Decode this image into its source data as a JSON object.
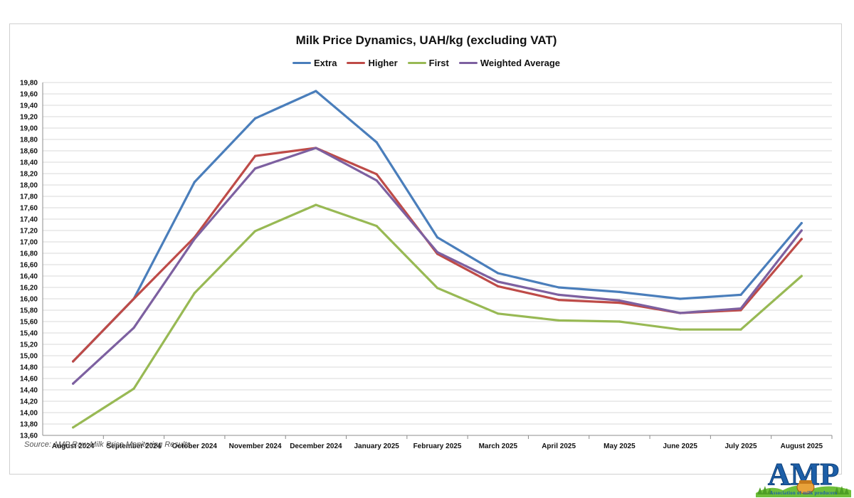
{
  "chart_data": {
    "type": "line",
    "title": "Milk Price Dynamics, UAH/kg (excluding VAT)",
    "xlabel": "",
    "ylabel": "",
    "categories": [
      "August 2024",
      "September 2024",
      "October 2024",
      "November 2024",
      "December 2024",
      "January 2025",
      "February 2025",
      "March 2025",
      "April 2025",
      "May 2025",
      "June 2025",
      "July 2025",
      "August 2025"
    ],
    "ylim": [
      13.6,
      19.8
    ],
    "yticks": [
      "13,60",
      "13,80",
      "14,00",
      "14,20",
      "14,40",
      "14,60",
      "14,80",
      "15,00",
      "15,20",
      "15,40",
      "15,60",
      "15,80",
      "16,00",
      "16,20",
      "16,40",
      "16,60",
      "16,80",
      "17,00",
      "17,20",
      "17,40",
      "17,60",
      "17,80",
      "18,00",
      "18,20",
      "18,40",
      "18,60",
      "18,80",
      "19,00",
      "19,20",
      "19,40",
      "19,60",
      "19,80"
    ],
    "grid": true,
    "legend_position": "top",
    "series": [
      {
        "name": "Extra",
        "color": "#4a7ebb",
        "values": [
          14.9,
          16.0,
          18.05,
          19.17,
          19.65,
          18.75,
          17.08,
          16.45,
          16.2,
          16.12,
          16.0,
          16.07,
          17.33
        ]
      },
      {
        "name": "Higher",
        "color": "#be4b48",
        "values": [
          14.9,
          16.0,
          17.08,
          18.51,
          18.65,
          18.19,
          16.79,
          16.22,
          15.98,
          15.93,
          15.75,
          15.8,
          17.05
        ]
      },
      {
        "name": "First",
        "color": "#98b954",
        "values": [
          13.74,
          14.42,
          16.1,
          17.19,
          17.65,
          17.28,
          16.19,
          15.74,
          15.62,
          15.6,
          15.46,
          15.46,
          16.4
        ]
      },
      {
        "name": "Weighted Average",
        "color": "#7d60a0",
        "values": [
          14.51,
          15.49,
          17.05,
          18.29,
          18.65,
          18.08,
          16.82,
          16.3,
          16.07,
          15.97,
          15.75,
          15.83,
          17.2
        ]
      }
    ]
  },
  "source": "Source: AMP Raw Milk Price Monitoring Results",
  "logo": {
    "text": "AMP",
    "caption": "Association of milk producers"
  }
}
